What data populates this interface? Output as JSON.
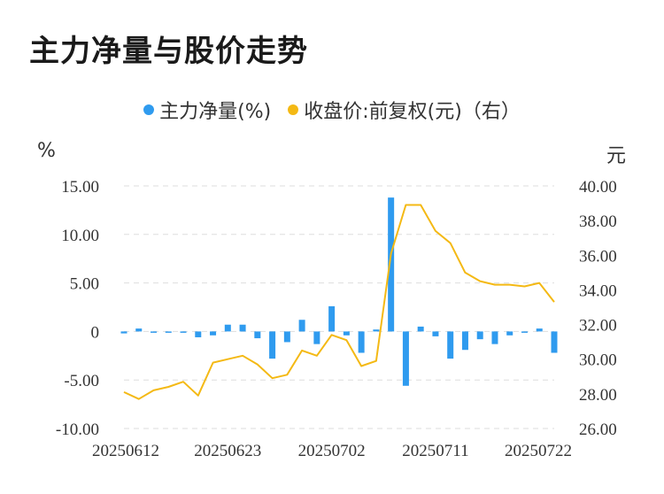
{
  "title": "主力净量与股价走势",
  "legend": {
    "left_series": "主力净量(%)",
    "right_series": "收盘价:前复权(元)（右）"
  },
  "left_unit": "%",
  "right_unit": "元",
  "colors": {
    "bar": "#2f9bef",
    "line": "#f4b914",
    "grid": "#dddddd"
  },
  "chart_data": {
    "type": "bar",
    "x_tick_labels": [
      "20250612",
      "20250623",
      "20250702",
      "20250711",
      "20250722"
    ],
    "x_tick_indices": [
      0,
      7,
      14,
      21,
      28
    ],
    "left_axis": {
      "min": -10,
      "max": 15,
      "step": 5,
      "tick_labels": [
        "-10.00",
        "-5.00",
        "0",
        "5.00",
        "10.00",
        "15.00"
      ]
    },
    "right_axis": {
      "min": 26,
      "max": 40,
      "step": 2,
      "tick_labels": [
        "26.00",
        "28.00",
        "30.00",
        "32.00",
        "34.00",
        "36.00",
        "38.00",
        "40.00"
      ]
    },
    "grid": true,
    "legend_position": "top",
    "series": [
      {
        "name": "主力净量(%)",
        "axis": "left",
        "type": "bar",
        "values": [
          -0.2,
          0.3,
          -0.1,
          -0.1,
          -0.1,
          -0.6,
          -0.4,
          0.7,
          0.7,
          -0.7,
          -2.8,
          -1.1,
          1.2,
          -1.3,
          2.6,
          -0.4,
          -2.2,
          0.2,
          13.8,
          -5.6,
          0.5,
          -0.5,
          -2.8,
          -1.9,
          -0.8,
          -1.3,
          -0.4,
          0.0,
          0.3,
          -2.2
        ]
      },
      {
        "name": "收盘价:前复权(元)（右）",
        "axis": "right",
        "type": "line",
        "values": [
          28.1,
          27.7,
          28.2,
          28.4,
          28.7,
          27.9,
          29.8,
          30.0,
          30.2,
          29.7,
          28.9,
          29.1,
          30.5,
          30.2,
          31.4,
          31.1,
          29.6,
          29.9,
          36.1,
          38.9,
          38.9,
          37.4,
          36.7,
          35.0,
          34.5,
          34.3,
          34.3,
          34.2,
          34.4,
          33.3
        ]
      }
    ]
  }
}
